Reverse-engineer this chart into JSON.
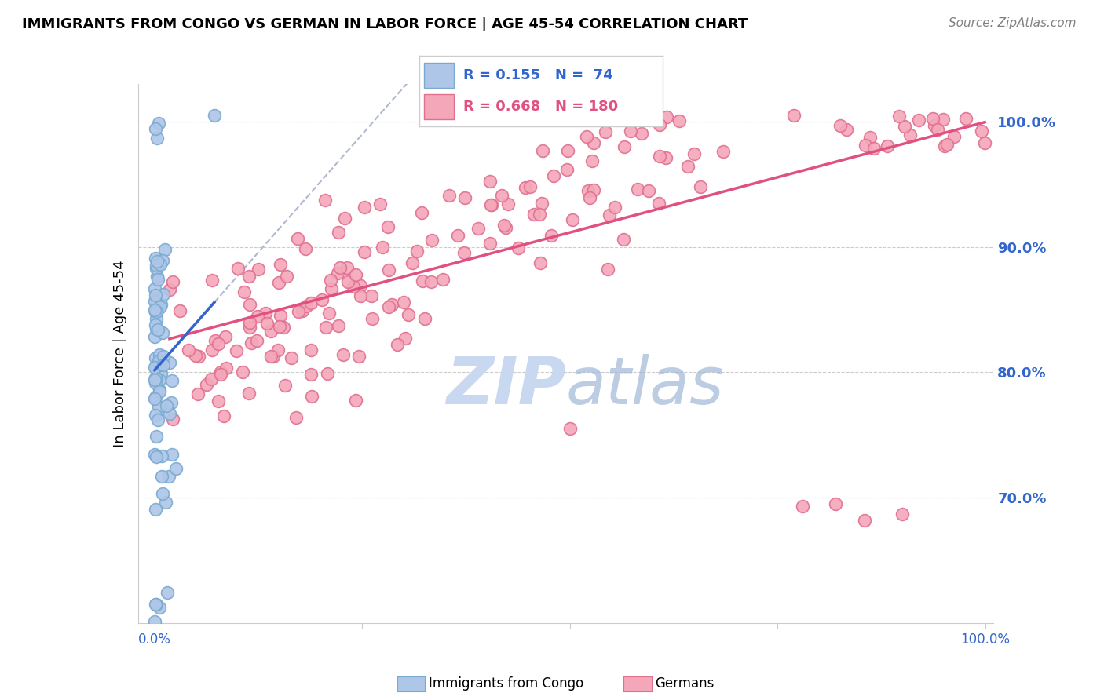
{
  "title": "IMMIGRANTS FROM CONGO VS GERMAN IN LABOR FORCE | AGE 45-54 CORRELATION CHART",
  "source": "Source: ZipAtlas.com",
  "ylabel": "In Labor Force | Age 45-54",
  "xlim": [
    -0.02,
    1.01
  ],
  "ylim": [
    0.6,
    1.03
  ],
  "yticks": [
    0.7,
    0.8,
    0.9,
    1.0
  ],
  "ytick_labels": [
    "70.0%",
    "80.0%",
    "90.0%",
    "100.0%"
  ],
  "congo_R": 0.155,
  "congo_N": 74,
  "german_R": 0.668,
  "german_N": 180,
  "congo_color": "#aec6e8",
  "congo_edge_color": "#7aaad0",
  "german_color": "#f4a7b9",
  "german_edge_color": "#e07090",
  "trendline_congo_color": "#3366cc",
  "trendline_german_color": "#e05080",
  "trendline_dashed_color": "#b0b8d0",
  "watermark_color": "#c8d8f0",
  "legend_box_color_congo": "#aec6e8",
  "legend_box_color_german": "#f4a7b9",
  "legend_R_congo": "0.155",
  "legend_N_congo": "74",
  "legend_R_german": "0.668",
  "legend_N_german": "180",
  "background_color": "#ffffff",
  "grid_color": "#cccccc"
}
